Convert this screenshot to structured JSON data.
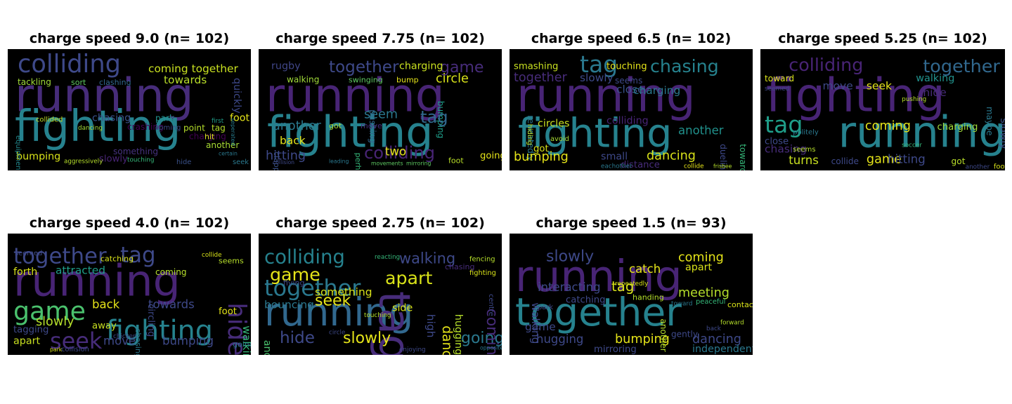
{
  "panels": [
    {
      "title": "charge speed 9.0 (n= 102)",
      "words": [
        {
          "t": "running",
          "c": "#472c7a",
          "s": 6.0
        },
        {
          "t": "fighting",
          "c": "#26828e",
          "s": 5.6
        },
        {
          "t": "colliding",
          "c": "#3e4989",
          "s": 3.2
        },
        {
          "t": "coming together",
          "c": "#c8e020",
          "s": 1.4
        },
        {
          "t": "towards",
          "c": "#b8de29",
          "s": 1.4
        },
        {
          "t": "tackling",
          "c": "#a0da39",
          "s": 1.1
        },
        {
          "t": "clashing",
          "c": "#31688e",
          "s": 1.0
        },
        {
          "t": "sort",
          "c": "#5ec962",
          "s": 1.0
        },
        {
          "t": "quickly",
          "c": "#3e4989",
          "s": 1.3
        },
        {
          "t": "chasing",
          "c": "#3b528b",
          "s": 1.3
        },
        {
          "t": "crashing",
          "c": "#440154",
          "s": 1.1
        },
        {
          "t": "park",
          "c": "#21918c",
          "s": 1.1
        },
        {
          "t": "foot",
          "c": "#e5e419",
          "s": 1.3
        },
        {
          "t": "point",
          "c": "#b5de2b",
          "s": 1.1
        },
        {
          "t": "tag",
          "c": "#b5de2b",
          "s": 1.1
        },
        {
          "t": "charging",
          "c": "#440154",
          "s": 1.1
        },
        {
          "t": "hit",
          "c": "#d8e219",
          "s": 1.0
        },
        {
          "t": "another",
          "c": "#a8db34",
          "s": 1.1
        },
        {
          "t": "something",
          "c": "#46327e",
          "s": 1.1
        },
        {
          "t": "slowly",
          "c": "#482475",
          "s": 1.2
        },
        {
          "t": "bumping",
          "c": "#d8e219",
          "s": 1.3
        },
        {
          "t": "aggressively",
          "c": "#b5de2b",
          "s": 0.8
        },
        {
          "t": "touching",
          "c": "#35b779",
          "s": 0.8
        },
        {
          "t": "hide",
          "c": "#3b528b",
          "s": 0.9
        },
        {
          "t": "seek",
          "c": "#2a788e",
          "s": 0.9
        },
        {
          "t": "equipment",
          "c": "#23898e",
          "s": 0.9
        },
        {
          "t": "collided",
          "c": "#c0df25",
          "s": 0.9
        },
        {
          "t": "dancing",
          "c": "#a2da37",
          "s": 0.8
        },
        {
          "t": "coming",
          "c": "#3e4989",
          "s": 0.9
        },
        {
          "t": "first",
          "c": "#1f9e89",
          "s": 0.8
        },
        {
          "t": "certain",
          "c": "#2a788e",
          "s": 0.7
        },
        {
          "t": "seperated",
          "c": "#287c8e",
          "s": 0.7
        }
      ]
    },
    {
      "title": "charge speed 7.75 (n= 102)",
      "words": [
        {
          "t": "running",
          "c": "#482475",
          "s": 6.0
        },
        {
          "t": "fighting",
          "c": "#26828e",
          "s": 5.6
        },
        {
          "t": "together",
          "c": "#3e4989",
          "s": 2.1
        },
        {
          "t": "game",
          "c": "#472c7a",
          "s": 2.0
        },
        {
          "t": "rugby",
          "c": "#404688",
          "s": 1.3
        },
        {
          "t": "charging",
          "c": "#c8e020",
          "s": 1.3
        },
        {
          "t": "circle",
          "c": "#d8e219",
          "s": 1.6
        },
        {
          "t": "walking",
          "c": "#a0da39",
          "s": 1.1
        },
        {
          "t": "swinging",
          "c": "#5ec962",
          "s": 1.0
        },
        {
          "t": "bump",
          "c": "#e5e419",
          "s": 1.0
        },
        {
          "t": "bumping",
          "c": "#1f9e89",
          "s": 1.1
        },
        {
          "t": "seem",
          "c": "#2a788e",
          "s": 1.6
        },
        {
          "t": "tag",
          "c": "#31688e",
          "s": 2.2
        },
        {
          "t": "colliding",
          "c": "#482475",
          "s": 2.2
        },
        {
          "t": "another",
          "c": "#2a788e",
          "s": 1.6
        },
        {
          "t": "hitting",
          "c": "#3e4989",
          "s": 1.6
        },
        {
          "t": "two",
          "c": "#e5e419",
          "s": 1.5
        },
        {
          "t": "back",
          "c": "#e5e419",
          "s": 1.4
        },
        {
          "t": "going",
          "c": "#e5e419",
          "s": 1.2
        },
        {
          "t": "foot",
          "c": "#b8de29",
          "s": 1.0
        },
        {
          "t": "pushing",
          "c": "#31688e",
          "s": 1.1
        },
        {
          "t": "perhaps",
          "c": "#35b779",
          "s": 1.0
        },
        {
          "t": "clapping",
          "c": "#3b528b",
          "s": 1.0
        },
        {
          "t": "move",
          "c": "#472c7a",
          "s": 1.0
        },
        {
          "t": "got",
          "c": "#a2da37",
          "s": 1.0
        },
        {
          "t": "collision",
          "c": "#3e4989",
          "s": 0.7
        },
        {
          "t": "leading",
          "c": "#2a788e",
          "s": 0.7
        },
        {
          "t": "movements",
          "c": "#5ec962",
          "s": 0.7
        },
        {
          "t": "mirroring",
          "c": "#5ec962",
          "s": 0.7
        }
      ]
    },
    {
      "title": "charge speed 6.5 (n= 102)",
      "words": [
        {
          "t": "running",
          "c": "#482475",
          "s": 6.0
        },
        {
          "t": "fighting",
          "c": "#26828e",
          "s": 5.2
        },
        {
          "t": "tag",
          "c": "#2a788e",
          "s": 3.0
        },
        {
          "t": "chasing",
          "c": "#26828e",
          "s": 2.3
        },
        {
          "t": "smashing",
          "c": "#c8e020",
          "s": 1.2
        },
        {
          "t": "touching",
          "c": "#e5e419",
          "s": 1.2
        },
        {
          "t": "together",
          "c": "#472c7a",
          "s": 1.6
        },
        {
          "t": "slowly",
          "c": "#3e4989",
          "s": 1.4
        },
        {
          "t": "seems",
          "c": "#3e4989",
          "s": 1.1
        },
        {
          "t": "close",
          "c": "#3b528b",
          "s": 1.4
        },
        {
          "t": "charging",
          "c": "#2a788e",
          "s": 1.4
        },
        {
          "t": "repeatedly",
          "c": "#2a788e",
          "s": 1.1
        },
        {
          "t": "circles",
          "c": "#c8e020",
          "s": 1.3
        },
        {
          "t": "colliding",
          "c": "#482475",
          "s": 1.3
        },
        {
          "t": "another",
          "c": "#21918c",
          "s": 1.5
        },
        {
          "t": "got",
          "c": "#d8e219",
          "s": 1.2
        },
        {
          "t": "bumping",
          "c": "#e5e419",
          "s": 1.6
        },
        {
          "t": "dancing",
          "c": "#d8e219",
          "s": 1.6
        },
        {
          "t": "small",
          "c": "#3e4989",
          "s": 1.3
        },
        {
          "t": "distance",
          "c": "#472c7a",
          "s": 1.2
        },
        {
          "t": "dueling",
          "c": "#3e4989",
          "s": 1.1
        },
        {
          "t": "towards",
          "c": "#35b779",
          "s": 1.1
        },
        {
          "t": "eachother",
          "c": "#2a788e",
          "s": 0.8
        },
        {
          "t": "collide",
          "c": "#e5e419",
          "s": 0.8
        },
        {
          "t": "frisbee",
          "c": "#b5de2b",
          "s": 0.7
        },
        {
          "t": "hiding",
          "c": "#b8de29",
          "s": 0.9
        },
        {
          "t": "avoid",
          "c": "#a8db34",
          "s": 0.9
        }
      ]
    },
    {
      "title": "charge speed 5.25 (n= 102)",
      "words": [
        {
          "t": "fighting",
          "c": "#482475",
          "s": 6.0
        },
        {
          "t": "running",
          "c": "#26828e",
          "s": 5.6
        },
        {
          "t": "tag",
          "c": "#1f9e89",
          "s": 3.0
        },
        {
          "t": "colliding",
          "c": "#482475",
          "s": 2.3
        },
        {
          "t": "together",
          "c": "#31688e",
          "s": 2.3
        },
        {
          "t": "toward",
          "c": "#d8e219",
          "s": 1.1
        },
        {
          "t": "walking",
          "c": "#21918c",
          "s": 1.3
        },
        {
          "t": "move",
          "c": "#3e4989",
          "s": 1.4
        },
        {
          "t": "seek",
          "c": "#e5e419",
          "s": 1.4
        },
        {
          "t": "hide",
          "c": "#472c7a",
          "s": 1.4
        },
        {
          "t": "coming",
          "c": "#e5e419",
          "s": 1.6
        },
        {
          "t": "charging",
          "c": "#a0da39",
          "s": 1.2
        },
        {
          "t": "chasing",
          "c": "#472c7a",
          "s": 1.4
        },
        {
          "t": "game",
          "c": "#e5e419",
          "s": 1.6
        },
        {
          "t": "hitting",
          "c": "#3e4989",
          "s": 1.5
        },
        {
          "t": "turns",
          "c": "#c8e020",
          "s": 1.5
        },
        {
          "t": "collide",
          "c": "#3e4989",
          "s": 1.1
        },
        {
          "t": "got",
          "c": "#b8de29",
          "s": 1.1
        },
        {
          "t": "close",
          "c": "#3e4989",
          "s": 1.2
        },
        {
          "t": "slowly",
          "c": "#3b528b",
          "s": 1.3
        },
        {
          "t": "maybe",
          "c": "#2a788e",
          "s": 1.1
        },
        {
          "t": "politely",
          "c": "#2a788e",
          "s": 0.9
        },
        {
          "t": "seems",
          "c": "#b5de2b",
          "s": 0.9
        },
        {
          "t": "soccer",
          "c": "#35b779",
          "s": 0.8
        },
        {
          "t": "foot",
          "c": "#d8e219",
          "s": 0.9
        },
        {
          "t": "another",
          "c": "#3e4989",
          "s": 0.8
        },
        {
          "t": "pushing",
          "c": "#b5de2b",
          "s": 0.8
        },
        {
          "t": "seemed",
          "c": "#3e4989",
          "s": 0.8
        }
      ]
    },
    {
      "title": "charge speed 4.0 (n= 102)",
      "words": [
        {
          "t": "running",
          "c": "#482475",
          "s": 5.6
        },
        {
          "t": "together",
          "c": "#3e4989",
          "s": 2.8
        },
        {
          "t": "tag",
          "c": "#3e4989",
          "s": 2.8
        },
        {
          "t": "hide",
          "c": "#472c7a",
          "s": 3.2
        },
        {
          "t": "game",
          "c": "#4ac16d",
          "s": 3.3
        },
        {
          "t": "fighting",
          "c": "#26828e",
          "s": 3.6
        },
        {
          "t": "seek",
          "c": "#472c7a",
          "s": 2.9
        },
        {
          "t": "attracted",
          "c": "#1f9e89",
          "s": 1.4
        },
        {
          "t": "forth",
          "c": "#d8e219",
          "s": 1.3
        },
        {
          "t": "catching",
          "c": "#d8e219",
          "s": 1.0
        },
        {
          "t": "coming",
          "c": "#b5de2b",
          "s": 1.1
        },
        {
          "t": "circling",
          "c": "#3e4989",
          "s": 1.2
        },
        {
          "t": "back",
          "c": "#e5e419",
          "s": 1.5
        },
        {
          "t": "towards",
          "c": "#3e4989",
          "s": 1.5
        },
        {
          "t": "slowly",
          "c": "#b5de2b",
          "s": 1.6
        },
        {
          "t": "walking",
          "c": "#35b779",
          "s": 1.4
        },
        {
          "t": "foot",
          "c": "#e5e419",
          "s": 1.2
        },
        {
          "t": "away",
          "c": "#c8e020",
          "s": 1.2
        },
        {
          "t": "tagging",
          "c": "#3e4989",
          "s": 1.2
        },
        {
          "t": "apart",
          "c": "#c8e020",
          "s": 1.3
        },
        {
          "t": "move",
          "c": "#3e4989",
          "s": 1.5
        },
        {
          "t": "bumping",
          "c": "#3e4989",
          "s": 1.5
        },
        {
          "t": "going",
          "c": "#2a788e",
          "s": 1.0
        },
        {
          "t": "collision",
          "c": "#3e4989",
          "s": 0.9
        },
        {
          "t": "park",
          "c": "#d8e219",
          "s": 0.7
        },
        {
          "t": "chasing",
          "c": "#2a788e",
          "s": 1.0
        },
        {
          "t": "chicken",
          "c": "#3e4989",
          "s": 0.8
        },
        {
          "t": "seemed",
          "c": "#3e4989",
          "s": 0.9
        },
        {
          "t": "collide",
          "c": "#d8e219",
          "s": 0.8
        },
        {
          "t": "seems",
          "c": "#b5de2b",
          "s": 1.0
        }
      ]
    },
    {
      "title": "charge speed 2.75 (n= 102)",
      "words": [
        {
          "t": "running",
          "c": "#31688e",
          "s": 5.0
        },
        {
          "t": "tag",
          "c": "#472c7a",
          "s": 5.6
        },
        {
          "t": "together",
          "c": "#2a788e",
          "s": 2.9
        },
        {
          "t": "colliding",
          "c": "#26828e",
          "s": 2.5
        },
        {
          "t": "walking",
          "c": "#3e4989",
          "s": 1.9
        },
        {
          "t": "game",
          "c": "#e5e419",
          "s": 2.3
        },
        {
          "t": "apart",
          "c": "#d8e219",
          "s": 2.3
        },
        {
          "t": "seek",
          "c": "#e5e419",
          "s": 2.0
        },
        {
          "t": "something",
          "c": "#d8e219",
          "s": 1.4
        },
        {
          "t": "bouncing",
          "c": "#2a788e",
          "s": 1.4
        },
        {
          "t": "side",
          "c": "#d8e219",
          "s": 1.3
        },
        {
          "t": "hide",
          "c": "#3e4989",
          "s": 2.1
        },
        {
          "t": "slowly",
          "c": "#e5e419",
          "s": 2.0
        },
        {
          "t": "going",
          "c": "#2a788e",
          "s": 2.0
        },
        {
          "t": "coming",
          "c": "#472c7a",
          "s": 2.0
        },
        {
          "t": "dancing",
          "c": "#e5e419",
          "s": 1.7
        },
        {
          "t": "hugging",
          "c": "#b5de2b",
          "s": 1.3
        },
        {
          "t": "another",
          "c": "#4ac16d",
          "s": 1.3
        },
        {
          "t": "high",
          "c": "#3e4989",
          "s": 1.4
        },
        {
          "t": "fencing",
          "c": "#b5de2b",
          "s": 0.9
        },
        {
          "t": "fighting",
          "c": "#d8e219",
          "s": 0.9
        },
        {
          "t": "fiving",
          "c": "#3e4989",
          "s": 1.0
        },
        {
          "t": "chasing",
          "c": "#472c7a",
          "s": 1.0
        },
        {
          "t": "reacting",
          "c": "#35b779",
          "s": 0.8
        },
        {
          "t": "circle",
          "c": "#3e4989",
          "s": 0.8
        },
        {
          "t": "enjoying",
          "c": "#3e4989",
          "s": 0.8
        },
        {
          "t": "opposite",
          "c": "#2a788e",
          "s": 0.7
        },
        {
          "t": "centre",
          "c": "#3e4989",
          "s": 0.9
        },
        {
          "t": "touching",
          "c": "#b5de2b",
          "s": 0.8
        }
      ]
    },
    {
      "title": "charge speed 1.5 (n= 93)",
      "words": [
        {
          "t": "running",
          "c": "#482475",
          "s": 5.6
        },
        {
          "t": "together",
          "c": "#26828e",
          "s": 5.0
        },
        {
          "t": "slowly",
          "c": "#3e4989",
          "s": 2.0
        },
        {
          "t": "coming",
          "c": "#e5e419",
          "s": 1.6
        },
        {
          "t": "catch",
          "c": "#e5e419",
          "s": 1.5
        },
        {
          "t": "apart",
          "c": "#d8e219",
          "s": 1.3
        },
        {
          "t": "interacting",
          "c": "#3e4989",
          "s": 1.5
        },
        {
          "t": "tag",
          "c": "#d8e219",
          "s": 1.8
        },
        {
          "t": "meeting",
          "c": "#b5de2b",
          "s": 1.6
        },
        {
          "t": "walking",
          "c": "#3e4989",
          "s": 1.4
        },
        {
          "t": "game",
          "c": "#3e4989",
          "s": 1.4
        },
        {
          "t": "hugging",
          "c": "#3e4989",
          "s": 1.5
        },
        {
          "t": "bumping",
          "c": "#e5e419",
          "s": 1.6
        },
        {
          "t": "dancing",
          "c": "#3e4989",
          "s": 1.6
        },
        {
          "t": "independently",
          "c": "#2a788e",
          "s": 1.3
        },
        {
          "t": "mirroring",
          "c": "#3e4989",
          "s": 1.2
        },
        {
          "t": "gently",
          "c": "#3e4989",
          "s": 1.1
        },
        {
          "t": "another",
          "c": "#b5de2b",
          "s": 1.1
        },
        {
          "t": "contact",
          "c": "#d8e219",
          "s": 1.0
        },
        {
          "t": "forward",
          "c": "#b5de2b",
          "s": 0.8
        },
        {
          "t": "back",
          "c": "#3e4989",
          "s": 0.8
        },
        {
          "t": "handing",
          "c": "#b5de2b",
          "s": 1.0
        },
        {
          "t": "peaceful",
          "c": "#35b779",
          "s": 0.9
        },
        {
          "t": "toward",
          "c": "#2a788e",
          "s": 0.8
        },
        {
          "t": "park",
          "c": "#3e4989",
          "s": 0.9
        },
        {
          "t": "catching",
          "c": "#3e4989",
          "s": 1.2
        },
        {
          "t": "repeatedly",
          "c": "#d8e219",
          "s": 0.8
        }
      ]
    }
  ]
}
